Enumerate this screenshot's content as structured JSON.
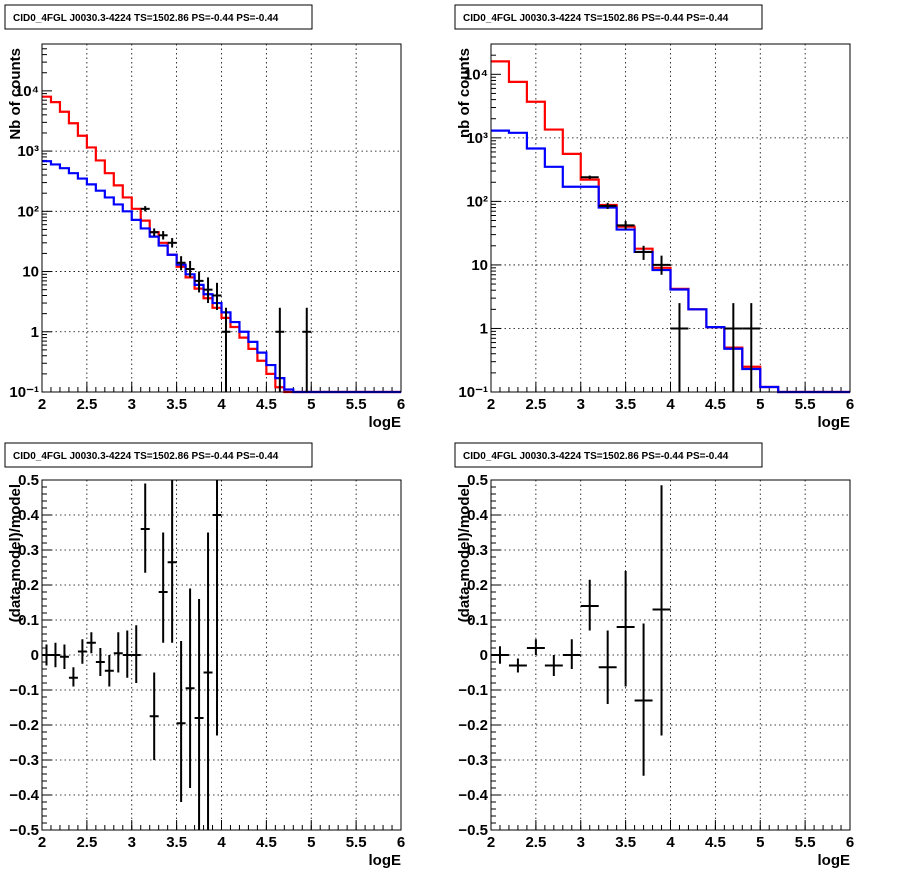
{
  "chart_data": [
    {
      "type": "line",
      "title": "CID0_4FGL J0030.3-4224 TS=1502.86 PS=-0.44 PS=-0.44",
      "xlabel": "logE",
      "ylabel": "Nb of counts",
      "xlim": [
        2,
        6
      ],
      "ylim": [
        0.1,
        60000
      ],
      "yscale": "log",
      "grid": true,
      "xticks": [
        "2",
        "2.5",
        "3",
        "3.5",
        "4",
        "4.5",
        "5",
        "5.5",
        "6"
      ],
      "yticks": [
        {
          "v": 0.1,
          "t": "10⁻¹"
        },
        {
          "v": 1,
          "t": "1"
        },
        {
          "v": 10,
          "t": "10"
        },
        {
          "v": 100,
          "t": "10²"
        },
        {
          "v": 1000,
          "t": "10³"
        },
        {
          "v": 10000,
          "t": "10⁴"
        }
      ],
      "bin_edges": [
        2,
        2.1,
        2.2,
        2.3,
        2.4,
        2.5,
        2.6,
        2.7,
        2.8,
        2.9,
        3,
        3.1,
        3.2,
        3.3,
        3.4,
        3.5,
        3.6,
        3.7,
        3.8,
        3.9,
        4,
        4.1,
        4.2,
        4.3,
        4.4,
        4.5,
        4.6,
        4.7,
        4.8,
        4.9,
        5,
        5.1,
        5.2,
        5.3,
        5.4,
        5.5,
        5.6,
        5.7,
        5.8,
        5.9,
        6
      ],
      "series": [
        {
          "color": "#ff0000",
          "values": [
            8000,
            6500,
            4500,
            2900,
            1800,
            1150,
            700,
            430,
            270,
            170,
            110,
            70,
            45,
            30,
            19,
            12,
            8,
            5.2,
            3.6,
            2.5,
            1.7,
            1.2,
            0.8,
            0.52,
            0.33,
            0.2,
            0.12,
            0.1,
            0.1,
            0.1,
            0.1,
            0.1,
            0.1,
            0.1,
            0.1,
            0.1,
            0.1,
            0.1,
            0.1,
            0.1
          ]
        },
        {
          "color": "#0000ff",
          "values": [
            680,
            600,
            520,
            430,
            350,
            280,
            220,
            170,
            130,
            100,
            72,
            52,
            38,
            27,
            19,
            13,
            9,
            6,
            4.2,
            3,
            2.1,
            1.45,
            1,
            0.68,
            0.45,
            0.28,
            0.17,
            0.11,
            0.1,
            0.1,
            0.1,
            0.1,
            0.1,
            0.1,
            0.1,
            0.1,
            0.1,
            0.1,
            0.1,
            0.1
          ]
        }
      ],
      "points": [
        {
          "x": 3.15,
          "y": 110,
          "lo": 100,
          "hi": 122
        },
        {
          "x": 3.25,
          "y": 45,
          "lo": 39,
          "hi": 52
        },
        {
          "x": 3.35,
          "y": 40,
          "lo": 34,
          "hi": 47
        },
        {
          "x": 3.45,
          "y": 30,
          "lo": 25,
          "hi": 36
        },
        {
          "x": 3.55,
          "y": 14,
          "lo": 10.5,
          "hi": 18
        },
        {
          "x": 3.65,
          "y": 11,
          "lo": 8,
          "hi": 15
        },
        {
          "x": 3.75,
          "y": 7,
          "lo": 4.5,
          "hi": 10
        },
        {
          "x": 3.85,
          "y": 5,
          "lo": 3,
          "hi": 8
        },
        {
          "x": 3.95,
          "y": 4,
          "lo": 2.3,
          "hi": 6.5
        },
        {
          "x": 4.05,
          "y": 1,
          "lo": 0.1,
          "hi": 2.5
        },
        {
          "x": 4.65,
          "y": 1,
          "lo": 0.1,
          "hi": 2.5
        },
        {
          "x": 4.95,
          "y": 1,
          "lo": 0.1,
          "hi": 2.5
        }
      ],
      "xerr": 0.05
    },
    {
      "type": "line",
      "title": "CID0_4FGL J0030.3-4224 TS=1502.86 PS=-0.44 PS=-0.44",
      "xlabel": "logE",
      "ylabel": "nb of counts",
      "xlim": [
        2,
        6
      ],
      "ylim": [
        0.1,
        30000
      ],
      "yscale": "log",
      "grid": true,
      "xticks": [
        "2",
        "2.5",
        "3",
        "3.5",
        "4",
        "4.5",
        "5",
        "5.5",
        "6"
      ],
      "yticks": [
        {
          "v": 0.1,
          "t": "10⁻¹"
        },
        {
          "v": 1,
          "t": "1"
        },
        {
          "v": 10,
          "t": "10"
        },
        {
          "v": 100,
          "t": "10²"
        },
        {
          "v": 1000,
          "t": "10³"
        },
        {
          "v": 10000,
          "t": "10⁴"
        }
      ],
      "bin_edges": [
        2,
        2.2,
        2.4,
        2.6,
        2.8,
        3,
        3.2,
        3.4,
        3.6,
        3.8,
        4,
        4.2,
        4.4,
        4.6,
        4.8,
        5,
        5.2,
        5.4,
        5.6,
        5.8,
        6
      ],
      "series": [
        {
          "color": "#ff0000",
          "values": [
            16000,
            7600,
            3700,
            1350,
            560,
            220,
            88,
            40,
            18,
            9,
            4.2,
            2,
            1.05,
            0.5,
            0.25,
            0.12,
            0.1,
            0.1,
            0.1,
            0.1
          ]
        },
        {
          "color": "#0000ff",
          "values": [
            1300,
            1200,
            680,
            350,
            170,
            170,
            80,
            36,
            16,
            8.3,
            4.1,
            2,
            1.05,
            0.48,
            0.23,
            0.12,
            0.1,
            0.1,
            0.1,
            0.1
          ]
        }
      ],
      "points": [
        {
          "x": 3.1,
          "y": 240,
          "lo": 225,
          "hi": 255
        },
        {
          "x": 3.3,
          "y": 85,
          "lo": 76,
          "hi": 95
        },
        {
          "x": 3.5,
          "y": 42,
          "lo": 36,
          "hi": 49
        },
        {
          "x": 3.7,
          "y": 16,
          "lo": 12,
          "hi": 20
        },
        {
          "x": 3.9,
          "y": 10,
          "lo": 7,
          "hi": 14
        },
        {
          "x": 4.1,
          "y": 1,
          "lo": 0.1,
          "hi": 2.5
        },
        {
          "x": 4.7,
          "y": 1,
          "lo": 0.1,
          "hi": 2.5
        },
        {
          "x": 4.9,
          "y": 1,
          "lo": 0.1,
          "hi": 2.5
        }
      ],
      "xerr": 0.1
    },
    {
      "type": "scatter",
      "title": "CID0_4FGL J0030.3-4224 TS=1502.86 PS=-0.44 PS=-0.44",
      "xlabel": "logE",
      "ylabel": "(data-model)/model",
      "xlim": [
        2,
        6
      ],
      "ylim": [
        -0.5,
        0.5
      ],
      "yscale": "linear",
      "grid": true,
      "xticks": [
        "2",
        "2.5",
        "3",
        "3.5",
        "4",
        "4.5",
        "5",
        "5.5",
        "6"
      ],
      "yticks": [
        {
          "v": -0.5,
          "t": "−0.5"
        },
        {
          "v": -0.4,
          "t": "−0.4"
        },
        {
          "v": -0.3,
          "t": "−0.3"
        },
        {
          "v": -0.2,
          "t": "−0.2"
        },
        {
          "v": -0.1,
          "t": "−0.1"
        },
        {
          "v": 0,
          "t": "0"
        },
        {
          "v": 0.1,
          "t": "0.1"
        },
        {
          "v": 0.2,
          "t": "0.2"
        },
        {
          "v": 0.3,
          "t": "0.3"
        },
        {
          "v": 0.4,
          "t": "0.4"
        },
        {
          "v": 0.5,
          "t": "0.5"
        }
      ],
      "points": [
        {
          "x": 2.05,
          "y": 0.0,
          "lo": -0.03,
          "hi": 0.03
        },
        {
          "x": 2.15,
          "y": 0.0,
          "lo": -0.035,
          "hi": 0.035
        },
        {
          "x": 2.25,
          "y": -0.005,
          "lo": -0.04,
          "hi": 0.03
        },
        {
          "x": 2.35,
          "y": -0.065,
          "lo": -0.09,
          "hi": -0.035
        },
        {
          "x": 2.45,
          "y": 0.01,
          "lo": -0.025,
          "hi": 0.045
        },
        {
          "x": 2.55,
          "y": 0.035,
          "lo": 0.005,
          "hi": 0.065
        },
        {
          "x": 2.65,
          "y": -0.02,
          "lo": -0.06,
          "hi": 0.02
        },
        {
          "x": 2.75,
          "y": -0.045,
          "lo": -0.09,
          "hi": 0.0
        },
        {
          "x": 2.85,
          "y": 0.005,
          "lo": -0.05,
          "hi": 0.065
        },
        {
          "x": 2.95,
          "y": 0.0,
          "lo": -0.065,
          "hi": 0.07
        },
        {
          "x": 3.05,
          "y": 0.0,
          "lo": -0.08,
          "hi": 0.085
        },
        {
          "x": 3.15,
          "y": 0.36,
          "lo": 0.235,
          "hi": 0.49
        },
        {
          "x": 3.25,
          "y": -0.175,
          "lo": -0.3,
          "hi": -0.05
        },
        {
          "x": 3.35,
          "y": 0.18,
          "lo": 0.035,
          "hi": 0.35
        },
        {
          "x": 3.45,
          "y": 0.265,
          "lo": 0.035,
          "hi": 0.5
        },
        {
          "x": 3.55,
          "y": -0.195,
          "lo": -0.42,
          "hi": 0.04
        },
        {
          "x": 3.65,
          "y": -0.095,
          "lo": -0.38,
          "hi": 0.19
        },
        {
          "x": 3.75,
          "y": -0.18,
          "lo": -0.5,
          "hi": 0.16
        },
        {
          "x": 3.85,
          "y": -0.05,
          "lo": -0.5,
          "hi": 0.35
        },
        {
          "x": 3.95,
          "y": 0.4,
          "lo": -0.23,
          "hi": 0.5
        }
      ],
      "xerr": 0.05
    },
    {
      "type": "scatter",
      "title": "CID0_4FGL J0030.3-4224 TS=1502.86 PS=-0.44 PS=-0.44",
      "xlabel": "logE",
      "ylabel": "(data-model)/model",
      "xlim": [
        2,
        6
      ],
      "ylim": [
        -0.5,
        0.5
      ],
      "yscale": "linear",
      "grid": true,
      "xticks": [
        "2",
        "2.5",
        "3",
        "3.5",
        "4",
        "4.5",
        "5",
        "5.5",
        "6"
      ],
      "yticks": [
        {
          "v": -0.5,
          "t": "−0.5"
        },
        {
          "v": -0.4,
          "t": "−0.4"
        },
        {
          "v": -0.3,
          "t": "−0.3"
        },
        {
          "v": -0.2,
          "t": "−0.2"
        },
        {
          "v": -0.1,
          "t": "−0.1"
        },
        {
          "v": 0,
          "t": "0"
        },
        {
          "v": 0.1,
          "t": "0.1"
        },
        {
          "v": 0.2,
          "t": "0.2"
        },
        {
          "v": 0.3,
          "t": "0.3"
        },
        {
          "v": 0.4,
          "t": "0.4"
        },
        {
          "v": 0.5,
          "t": "0.5"
        }
      ],
      "points": [
        {
          "x": 2.1,
          "y": 0.0,
          "lo": -0.025,
          "hi": 0.025
        },
        {
          "x": 2.3,
          "y": -0.03,
          "lo": -0.05,
          "hi": -0.01
        },
        {
          "x": 2.5,
          "y": 0.02,
          "lo": 0.0,
          "hi": 0.045
        },
        {
          "x": 2.7,
          "y": -0.03,
          "lo": -0.06,
          "hi": 0.0
        },
        {
          "x": 2.9,
          "y": 0.0,
          "lo": -0.04,
          "hi": 0.045
        },
        {
          "x": 3.1,
          "y": 0.14,
          "lo": 0.07,
          "hi": 0.215
        },
        {
          "x": 3.3,
          "y": -0.035,
          "lo": -0.14,
          "hi": 0.07
        },
        {
          "x": 3.5,
          "y": 0.08,
          "lo": -0.09,
          "hi": 0.24
        },
        {
          "x": 3.7,
          "y": -0.13,
          "lo": -0.345,
          "hi": 0.09
        },
        {
          "x": 3.9,
          "y": 0.13,
          "lo": -0.23,
          "hi": 0.485
        }
      ],
      "xerr": 0.1
    }
  ]
}
